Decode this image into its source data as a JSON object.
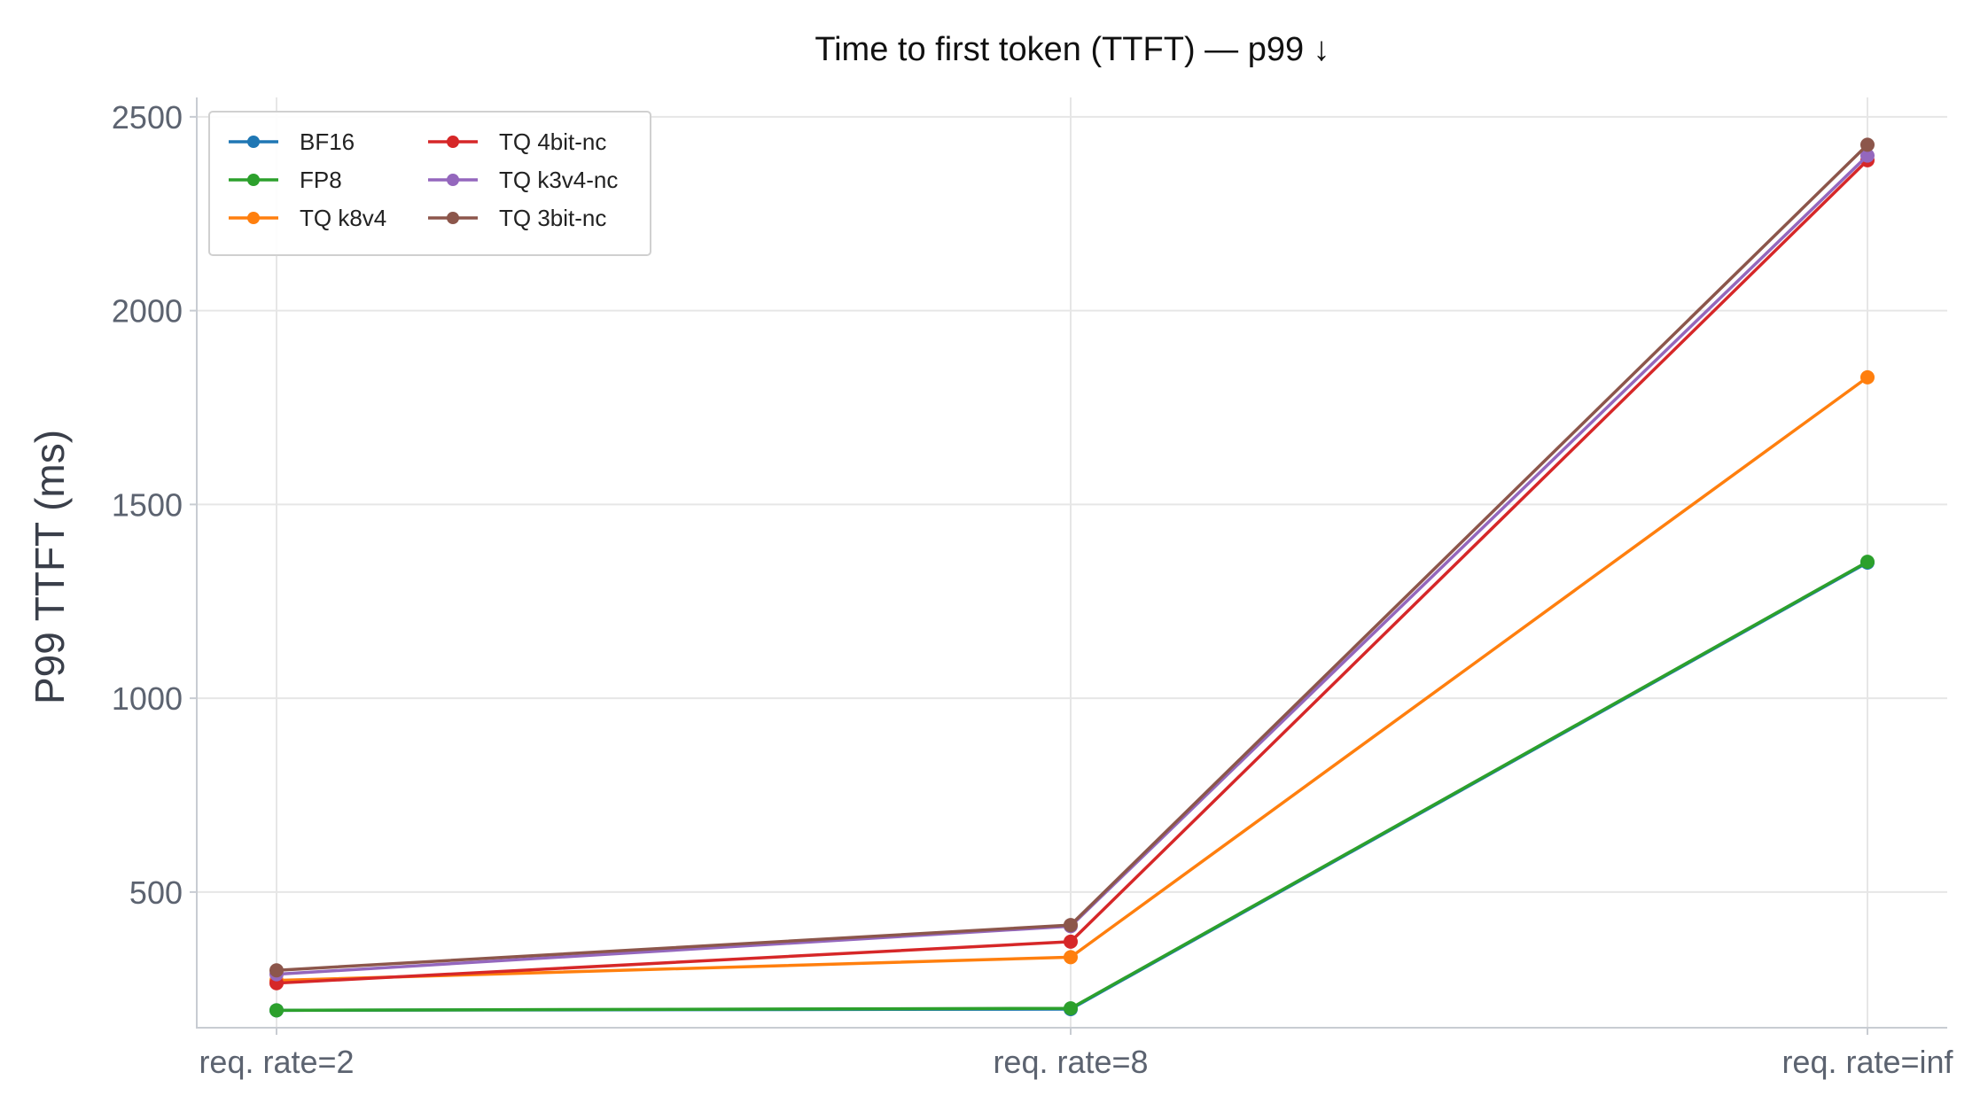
{
  "chart_data": {
    "type": "line",
    "title": "Time to first token (TTFT) — p99 ↓",
    "xlabel": "",
    "ylabel": "P99 TTFT (ms)",
    "categories": [
      "req. rate=2",
      "req. rate=8",
      "req. rate=inf"
    ],
    "ylim": [
      150,
      2550
    ],
    "yticks": [
      500,
      1000,
      1500,
      2000,
      2500
    ],
    "grid": true,
    "legend_position": "top-left",
    "series": [
      {
        "name": "BF16",
        "color": "#1f77b4",
        "values": [
          195,
          198,
          1350
        ]
      },
      {
        "name": "FP8",
        "color": "#2ca02c",
        "values": [
          195,
          200,
          1352
        ]
      },
      {
        "name": "TQ k8v4",
        "color": "#ff7f0e",
        "values": [
          272,
          332,
          1828
        ]
      },
      {
        "name": "TQ 4bit-nc",
        "color": "#d62728",
        "values": [
          265,
          372,
          2388
        ]
      },
      {
        "name": "TQ k3v4-nc",
        "color": "#9467bd",
        "values": [
          288,
          412,
          2400
        ]
      },
      {
        "name": "TQ 3bit-nc",
        "color": "#8c564b",
        "values": [
          298,
          415,
          2428
        ]
      }
    ]
  }
}
